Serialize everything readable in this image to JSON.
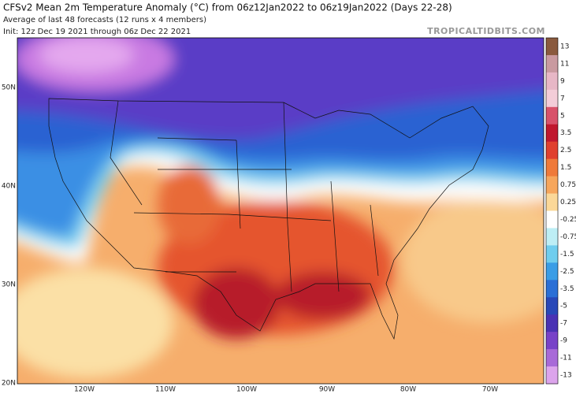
{
  "header": {
    "title": "CFSv2 Mean 2m Temperature Anomaly (°C) from 06z12Jan2022 to 06z19Jan2022 (Days 22-28)",
    "subtitle": "Average of last 48 forecasts (12 runs x 4 members)",
    "init": "Init: 12z Dec 19 2021 through 06z Dec 22 2021",
    "watermark": "TROPICALTIDBITS.COM"
  },
  "map": {
    "lat_labels": [
      "50N",
      "40N",
      "30N",
      "20N"
    ],
    "lon_labels": [
      "120W",
      "110W",
      "100W",
      "90W",
      "80W",
      "70W"
    ]
  },
  "colorbar": {
    "labels": [
      "13",
      "11",
      "9",
      "7",
      "5",
      "3.5",
      "2.5",
      "1.5",
      "0.75",
      "0.25",
      "-0.25",
      "-0.75",
      "-1.5",
      "-2.5",
      "-3.5",
      "-5",
      "-7",
      "-9",
      "-11",
      "-13"
    ],
    "colors": [
      "#8a5a3e",
      "#c99aa0",
      "#e7b7c6",
      "#f3cdd8",
      "#d8526a",
      "#c0182e",
      "#e0402e",
      "#ef7a3a",
      "#f6a65c",
      "#fbd898",
      "#ffffff",
      "#bdeef5",
      "#6fcdee",
      "#3a9de6",
      "#2a6fd6",
      "#2848b8",
      "#4a32b4",
      "#7842c8",
      "#a86ad8",
      "#dca4ec"
    ]
  }
}
